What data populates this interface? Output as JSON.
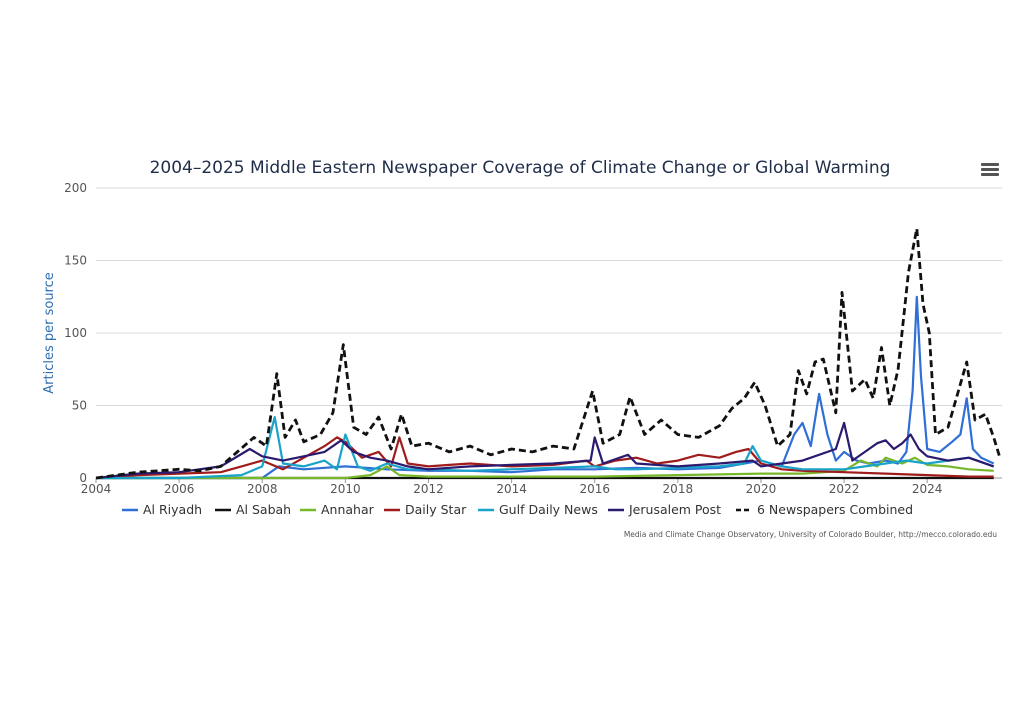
{
  "chart_data": {
    "type": "line",
    "title": "2004–2025 Middle Eastern Newspaper Coverage of Climate Change or Global Warming",
    "ylabel": "Articles per source",
    "xlabel": "",
    "xlim": [
      2004,
      2025.8
    ],
    "ylim": [
      0,
      200
    ],
    "x_ticks": [
      "2004",
      "2006",
      "2008",
      "2010",
      "2012",
      "2014",
      "2016",
      "2018",
      "2020",
      "2022",
      "2024"
    ],
    "x_tick_values": [
      2004,
      2006,
      2008,
      2010,
      2012,
      2014,
      2016,
      2018,
      2020,
      2022,
      2024
    ],
    "y_ticks": [
      0,
      50,
      100,
      150,
      200
    ],
    "grid": true,
    "legend_position": "bottom",
    "credit": "Media and Climate Change Observatory, University of Colorado Boulder, http://mecco.colorado.edu",
    "series": [
      {
        "name": "Al Riyadh",
        "color": "#2f6fd6",
        "dash": false,
        "points": [
          [
            2004,
            0
          ],
          [
            2008,
            0
          ],
          [
            2008.2,
            4
          ],
          [
            2008.4,
            8
          ],
          [
            2009,
            6
          ],
          [
            2010,
            8
          ],
          [
            2011,
            6
          ],
          [
            2012,
            5
          ],
          [
            2013,
            5
          ],
          [
            2014,
            4
          ],
          [
            2015,
            6
          ],
          [
            2016,
            6
          ],
          [
            2017,
            7
          ],
          [
            2018,
            6
          ],
          [
            2019,
            7
          ],
          [
            2019.6,
            10
          ],
          [
            2020,
            12
          ],
          [
            2020.5,
            8
          ],
          [
            2020.8,
            30
          ],
          [
            2021,
            38
          ],
          [
            2021.2,
            22
          ],
          [
            2021.4,
            58
          ],
          [
            2021.6,
            30
          ],
          [
            2021.8,
            12
          ],
          [
            2022,
            18
          ],
          [
            2022.3,
            12
          ],
          [
            2022.6,
            10
          ],
          [
            2023,
            12
          ],
          [
            2023.3,
            10
          ],
          [
            2023.5,
            18
          ],
          [
            2023.65,
            60
          ],
          [
            2023.75,
            125
          ],
          [
            2023.85,
            70
          ],
          [
            2024,
            20
          ],
          [
            2024.3,
            18
          ],
          [
            2024.6,
            25
          ],
          [
            2024.8,
            30
          ],
          [
            2024.95,
            55
          ],
          [
            2025.1,
            20
          ],
          [
            2025.3,
            14
          ],
          [
            2025.6,
            10
          ]
        ]
      },
      {
        "name": "Al Sabah",
        "color": "#111111",
        "dash": false,
        "points": [
          [
            2004,
            0
          ],
          [
            2006,
            0
          ],
          [
            2010,
            0
          ],
          [
            2014,
            0
          ],
          [
            2018,
            0
          ],
          [
            2022,
            0
          ],
          [
            2025.6,
            0
          ]
        ]
      },
      {
        "name": "Annahar",
        "color": "#76b82a",
        "dash": false,
        "points": [
          [
            2004,
            0
          ],
          [
            2010,
            0
          ],
          [
            2010.6,
            2
          ],
          [
            2011,
            8
          ],
          [
            2011.3,
            2
          ],
          [
            2012,
            1
          ],
          [
            2016,
            1
          ],
          [
            2018,
            2
          ],
          [
            2020,
            3
          ],
          [
            2021,
            3
          ],
          [
            2022,
            5
          ],
          [
            2022.4,
            12
          ],
          [
            2022.8,
            8
          ],
          [
            2023,
            14
          ],
          [
            2023.4,
            10
          ],
          [
            2023.7,
            14
          ],
          [
            2024,
            9
          ],
          [
            2024.5,
            8
          ],
          [
            2025,
            6
          ],
          [
            2025.6,
            5
          ]
        ]
      },
      {
        "name": "Daily Star",
        "color": "#a01c1c",
        "dash": false,
        "points": [
          [
            2004,
            0
          ],
          [
            2005,
            2
          ],
          [
            2006,
            3
          ],
          [
            2007,
            4
          ],
          [
            2007.5,
            8
          ],
          [
            2008,
            12
          ],
          [
            2008.5,
            6
          ],
          [
            2009,
            14
          ],
          [
            2009.5,
            22
          ],
          [
            2009.8,
            28
          ],
          [
            2010,
            25
          ],
          [
            2010.4,
            14
          ],
          [
            2010.8,
            18
          ],
          [
            2011.1,
            8
          ],
          [
            2011.3,
            28
          ],
          [
            2011.5,
            10
          ],
          [
            2012,
            8
          ],
          [
            2012.5,
            9
          ],
          [
            2013,
            10
          ],
          [
            2014,
            8
          ],
          [
            2015,
            9
          ],
          [
            2015.8,
            12
          ],
          [
            2016,
            8
          ],
          [
            2016.5,
            12
          ],
          [
            2017,
            14
          ],
          [
            2017.5,
            10
          ],
          [
            2018,
            12
          ],
          [
            2018.5,
            16
          ],
          [
            2019,
            14
          ],
          [
            2019.4,
            18
          ],
          [
            2019.7,
            20
          ],
          [
            2020,
            10
          ],
          [
            2020.5,
            6
          ],
          [
            2021,
            5
          ],
          [
            2022,
            4
          ],
          [
            2023,
            3
          ],
          [
            2024,
            2
          ],
          [
            2025,
            1
          ],
          [
            2025.6,
            1
          ]
        ]
      },
      {
        "name": "Gulf Daily News",
        "color": "#1aa3c9",
        "dash": false,
        "points": [
          [
            2004,
            0
          ],
          [
            2006,
            0
          ],
          [
            2007.5,
            2
          ],
          [
            2008,
            8
          ],
          [
            2008.3,
            42
          ],
          [
            2008.5,
            10
          ],
          [
            2009,
            8
          ],
          [
            2009.5,
            12
          ],
          [
            2009.8,
            6
          ],
          [
            2010,
            30
          ],
          [
            2010.3,
            8
          ],
          [
            2010.6,
            5
          ],
          [
            2011,
            10
          ],
          [
            2011.5,
            6
          ],
          [
            2012,
            6
          ],
          [
            2013,
            5
          ],
          [
            2014,
            6
          ],
          [
            2015,
            7
          ],
          [
            2016,
            8
          ],
          [
            2016.5,
            6
          ],
          [
            2017,
            6
          ],
          [
            2018,
            7
          ],
          [
            2019,
            8
          ],
          [
            2019.6,
            10
          ],
          [
            2019.8,
            22
          ],
          [
            2020,
            12
          ],
          [
            2020.5,
            8
          ],
          [
            2021,
            6
          ],
          [
            2022,
            6
          ],
          [
            2022.5,
            8
          ],
          [
            2023,
            10
          ],
          [
            2023.5,
            12
          ],
          [
            2024,
            10
          ],
          [
            2024.5,
            12
          ],
          [
            2025,
            14
          ],
          [
            2025.4,
            10
          ],
          [
            2025.6,
            8
          ]
        ]
      },
      {
        "name": "Jerusalem Post",
        "color": "#2c1a6e",
        "dash": false,
        "points": [
          [
            2004,
            0
          ],
          [
            2005,
            3
          ],
          [
            2006,
            4
          ],
          [
            2007,
            8
          ],
          [
            2007.7,
            20
          ],
          [
            2008,
            15
          ],
          [
            2008.5,
            12
          ],
          [
            2009,
            15
          ],
          [
            2009.5,
            18
          ],
          [
            2009.9,
            26
          ],
          [
            2010.2,
            18
          ],
          [
            2010.6,
            14
          ],
          [
            2011,
            12
          ],
          [
            2011.5,
            8
          ],
          [
            2012,
            6
          ],
          [
            2013,
            8
          ],
          [
            2014,
            9
          ],
          [
            2015,
            10
          ],
          [
            2015.9,
            12
          ],
          [
            2016,
            28
          ],
          [
            2016.2,
            10
          ],
          [
            2016.8,
            16
          ],
          [
            2017,
            10
          ],
          [
            2018,
            8
          ],
          [
            2019,
            10
          ],
          [
            2019.8,
            12
          ],
          [
            2020,
            8
          ],
          [
            2021,
            12
          ],
          [
            2021.8,
            20
          ],
          [
            2022,
            38
          ],
          [
            2022.2,
            12
          ],
          [
            2022.6,
            20
          ],
          [
            2022.8,
            24
          ],
          [
            2023,
            26
          ],
          [
            2023.2,
            20
          ],
          [
            2023.4,
            24
          ],
          [
            2023.6,
            30
          ],
          [
            2023.8,
            20
          ],
          [
            2024,
            15
          ],
          [
            2024.5,
            12
          ],
          [
            2025,
            14
          ],
          [
            2025.6,
            8
          ]
        ]
      },
      {
        "name": "6 Newspapers Combined",
        "color": "#111111",
        "dash": true,
        "points": [
          [
            2004,
            0
          ],
          [
            2004.5,
            2
          ],
          [
            2005,
            4
          ],
          [
            2005.5,
            5
          ],
          [
            2006,
            6
          ],
          [
            2006.5,
            5
          ],
          [
            2007,
            8
          ],
          [
            2007.4,
            18
          ],
          [
            2007.8,
            28
          ],
          [
            2008.1,
            22
          ],
          [
            2008.35,
            72
          ],
          [
            2008.55,
            28
          ],
          [
            2008.8,
            40
          ],
          [
            2009,
            25
          ],
          [
            2009.4,
            30
          ],
          [
            2009.7,
            45
          ],
          [
            2009.95,
            92
          ],
          [
            2010.2,
            35
          ],
          [
            2010.5,
            30
          ],
          [
            2010.8,
            42
          ],
          [
            2011.1,
            20
          ],
          [
            2011.35,
            44
          ],
          [
            2011.6,
            22
          ],
          [
            2012,
            24
          ],
          [
            2012.5,
            18
          ],
          [
            2013,
            22
          ],
          [
            2013.5,
            16
          ],
          [
            2014,
            20
          ],
          [
            2014.5,
            18
          ],
          [
            2015,
            22
          ],
          [
            2015.5,
            20
          ],
          [
            2015.95,
            60
          ],
          [
            2016.2,
            24
          ],
          [
            2016.6,
            30
          ],
          [
            2016.85,
            56
          ],
          [
            2017.2,
            30
          ],
          [
            2017.6,
            40
          ],
          [
            2018,
            30
          ],
          [
            2018.5,
            28
          ],
          [
            2019,
            36
          ],
          [
            2019.3,
            48
          ],
          [
            2019.6,
            55
          ],
          [
            2019.85,
            66
          ],
          [
            2020.1,
            50
          ],
          [
            2020.4,
            22
          ],
          [
            2020.7,
            30
          ],
          [
            2020.9,
            74
          ],
          [
            2021.1,
            58
          ],
          [
            2021.3,
            80
          ],
          [
            2021.5,
            82
          ],
          [
            2021.8,
            45
          ],
          [
            2021.95,
            128
          ],
          [
            2022.2,
            60
          ],
          [
            2022.5,
            68
          ],
          [
            2022.7,
            55
          ],
          [
            2022.9,
            90
          ],
          [
            2023.1,
            50
          ],
          [
            2023.3,
            75
          ],
          [
            2023.55,
            142
          ],
          [
            2023.75,
            172
          ],
          [
            2023.9,
            120
          ],
          [
            2024.05,
            100
          ],
          [
            2024.2,
            30
          ],
          [
            2024.5,
            35
          ],
          [
            2024.7,
            55
          ],
          [
            2024.95,
            80
          ],
          [
            2025.15,
            40
          ],
          [
            2025.4,
            44
          ],
          [
            2025.6,
            28
          ],
          [
            2025.75,
            14
          ]
        ]
      }
    ]
  }
}
